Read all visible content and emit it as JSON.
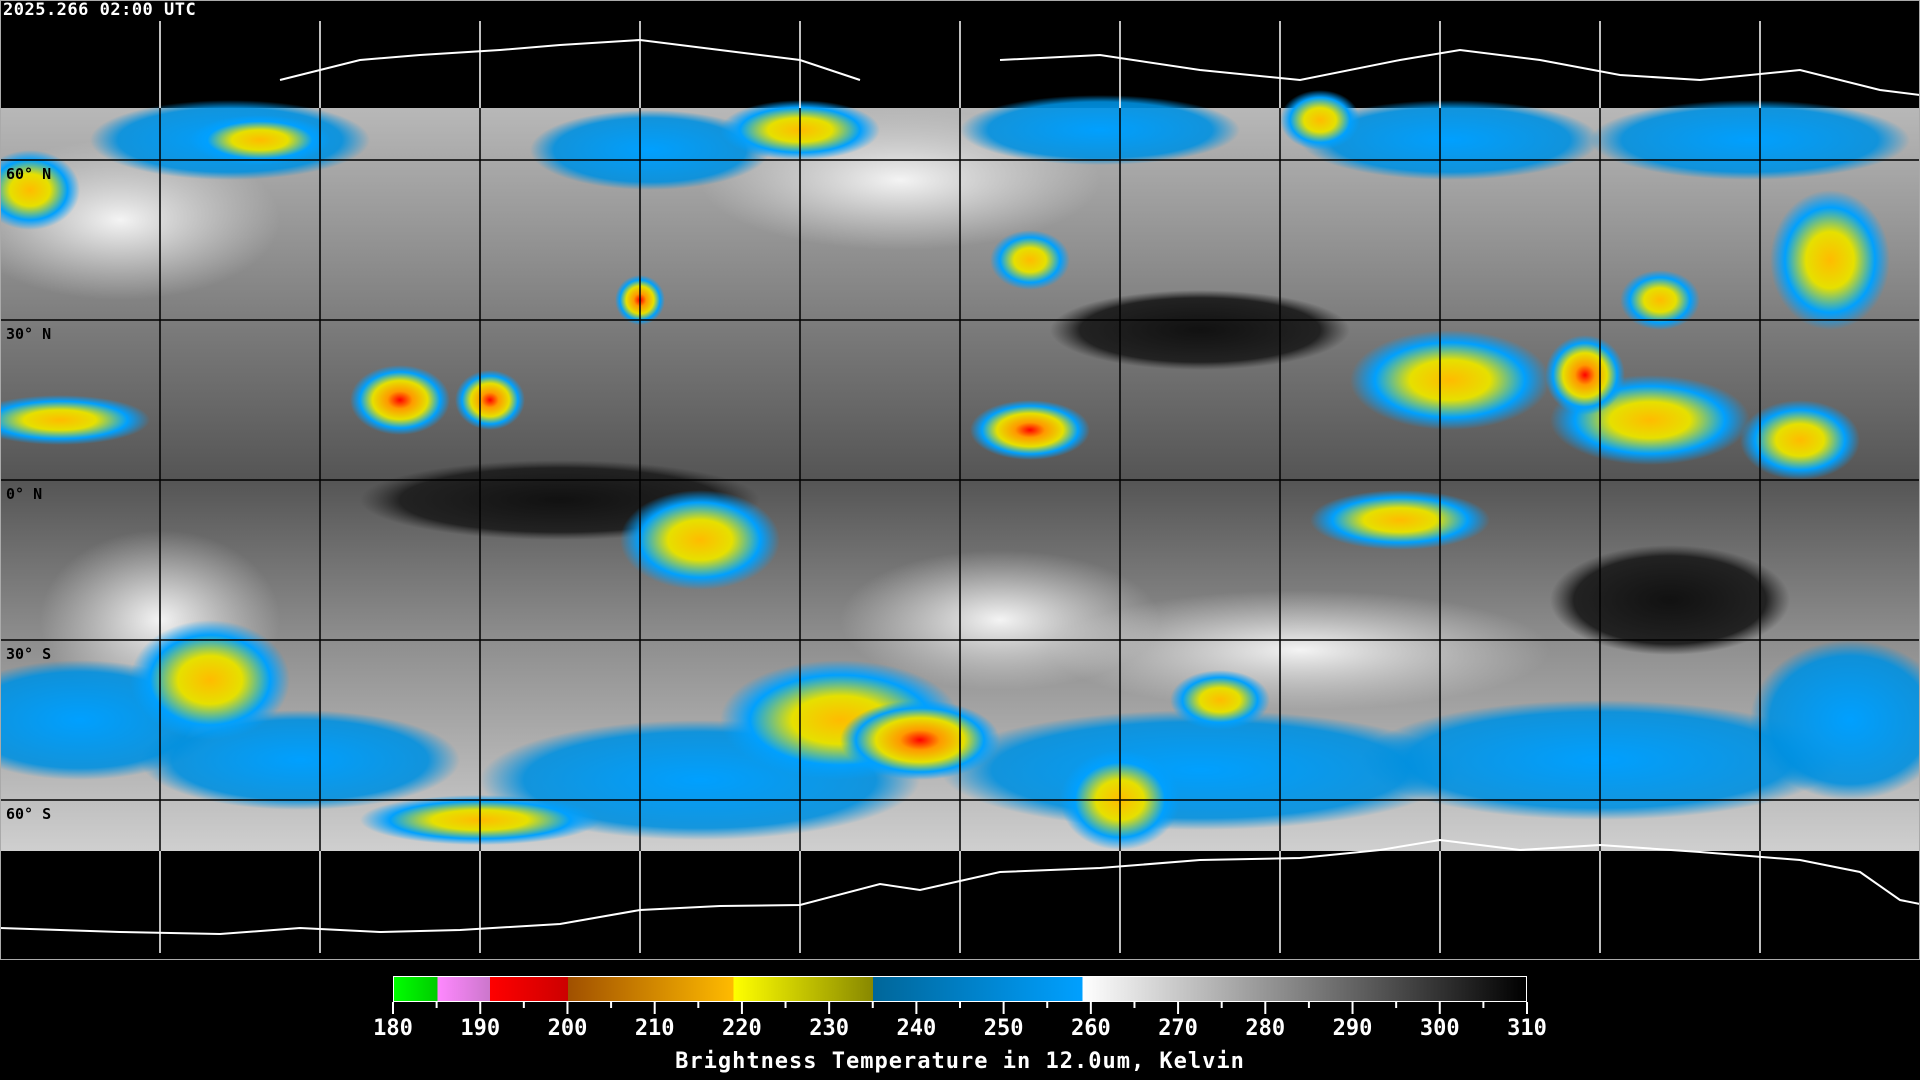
{
  "header": {
    "timestamp": "2025.266 02:00 UTC"
  },
  "map": {
    "lat_labels": [
      "60° N",
      "30° N",
      "0° N",
      "30° S",
      "60° S"
    ],
    "graticule_spacing_deg": 30
  },
  "colorbar": {
    "title": "Brightness Temperature in 12.0um, Kelvin",
    "min": 180,
    "max": 310,
    "tick_labels": [
      "180",
      "190",
      "200",
      "210",
      "220",
      "230",
      "240",
      "250",
      "260",
      "270",
      "280",
      "290",
      "300",
      "310"
    ],
    "segments": [
      {
        "from": 180,
        "to": 185,
        "color": "#00ff00"
      },
      {
        "from": 185,
        "to": 191,
        "color": "#ff88ff"
      },
      {
        "from": 191,
        "to": 200,
        "color": "#ff0000"
      },
      {
        "from": 200,
        "to": 219,
        "color": "#ffbb00"
      },
      {
        "from": 219,
        "to": 235,
        "color": "#ffff00"
      },
      {
        "from": 235,
        "to": 259,
        "color": "#00a0ff"
      },
      {
        "from": 259,
        "to": 310,
        "color": "#ffffff"
      }
    ]
  }
}
